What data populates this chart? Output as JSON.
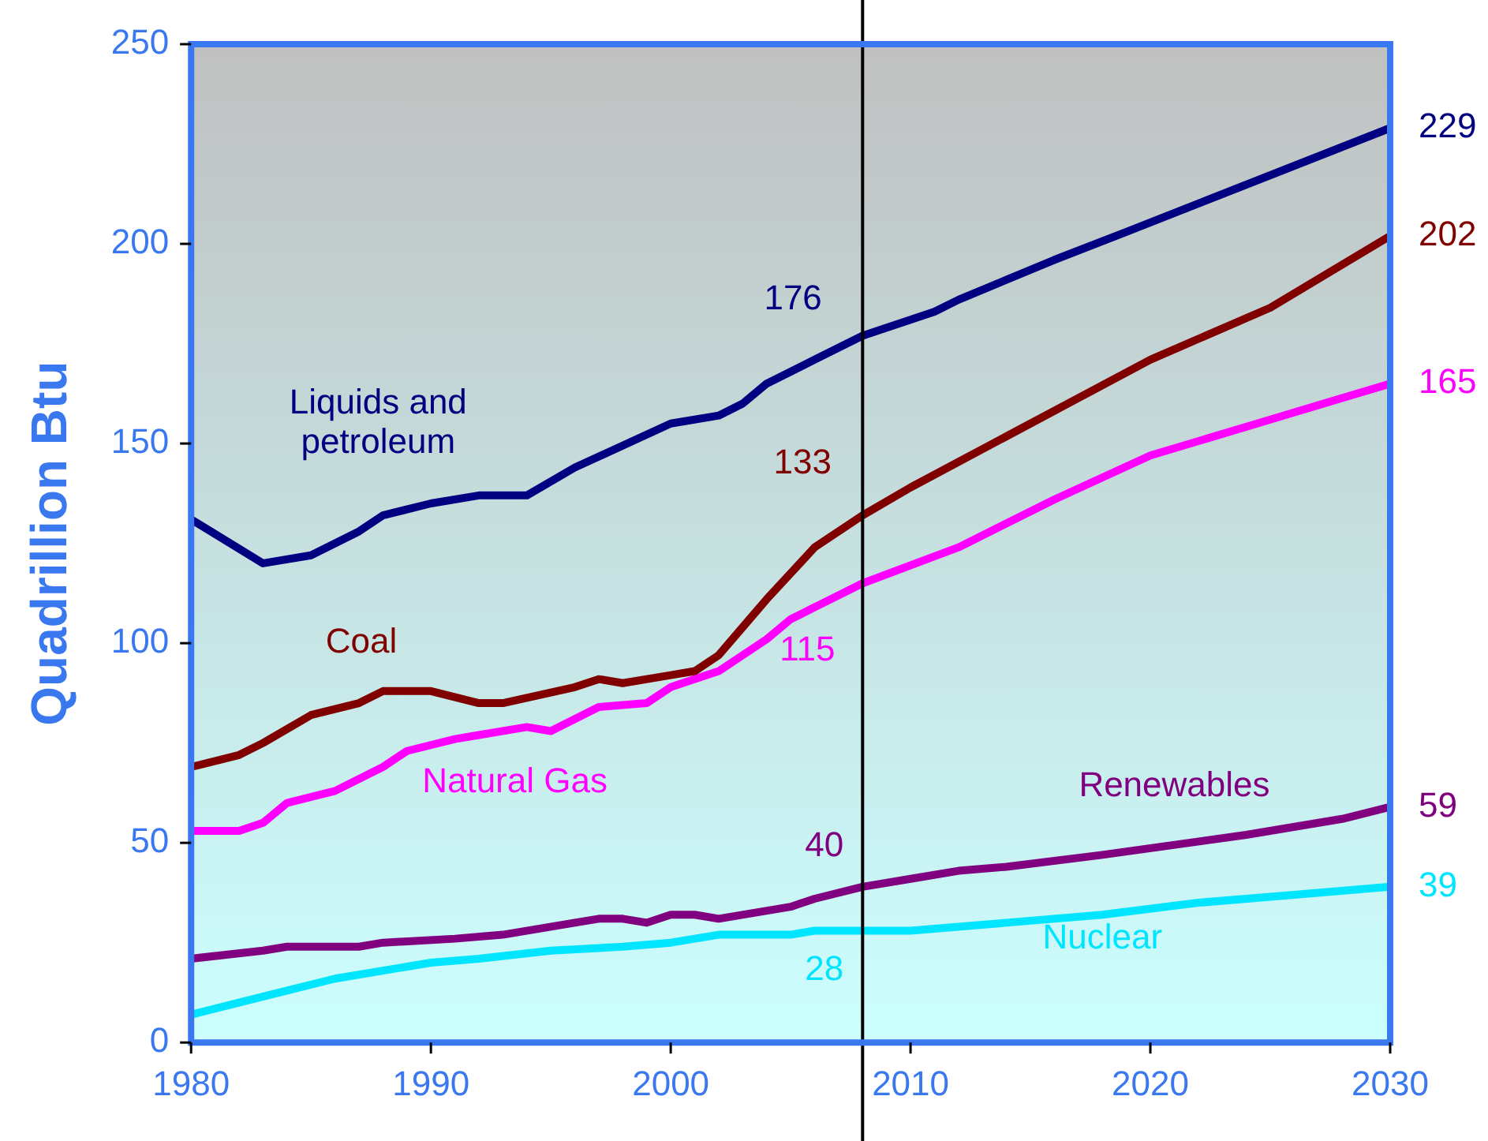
{
  "chart_data": {
    "type": "line",
    "ylabel": "Quadrillion Btu",
    "xlim": [
      1980,
      2030
    ],
    "xticks": [
      1980,
      1990,
      2000,
      2010,
      2020,
      2030
    ],
    "ylim": [
      0,
      250
    ],
    "yticks": [
      0,
      50,
      100,
      150,
      200,
      250
    ],
    "legend": false,
    "marker": "none",
    "line_style": "solid",
    "series": [
      {
        "name": "Liquids and petroleum",
        "color": "#000080",
        "x": [
          1980,
          1983,
          1985,
          1987,
          1988,
          1990,
          1992,
          1994,
          1996,
          2000,
          2002,
          2003,
          2004,
          2006,
          2008,
          2011,
          2012,
          2016,
          2019,
          2030
        ],
        "values": [
          131,
          120,
          122,
          128,
          132,
          135,
          137,
          137,
          144,
          155,
          157,
          160,
          165,
          171,
          177,
          183,
          186,
          196,
          203,
          229
        ],
        "value_labels": [
          null,
          null,
          null,
          null,
          null,
          null,
          null,
          null,
          null,
          null,
          null,
          null,
          null,
          null,
          null,
          null,
          null,
          null,
          null,
          "229"
        ]
      },
      {
        "name": "Coal",
        "color": "#800000",
        "x": [
          1980,
          1982,
          1983,
          1985,
          1987,
          1988,
          1990,
          1992,
          1993,
          1996,
          1997,
          1998,
          2000,
          2001,
          2002,
          2003,
          2004,
          2006,
          2008,
          2010,
          2015,
          2020,
          2025,
          2030
        ],
        "values": [
          69,
          72,
          75,
          82,
          85,
          88,
          88,
          85,
          85,
          89,
          91,
          90,
          92,
          93,
          97,
          104,
          111,
          124,
          132,
          139,
          155,
          171,
          184,
          202
        ],
        "value_labels": [
          null,
          null,
          null,
          null,
          null,
          null,
          null,
          null,
          null,
          null,
          null,
          null,
          null,
          null,
          null,
          null,
          null,
          null,
          null,
          null,
          null,
          null,
          null,
          "202"
        ]
      },
      {
        "name": "Natural Gas",
        "color": "#ff00ff",
        "x": [
          1980,
          1982,
          1983,
          1984,
          1986,
          1988,
          1989,
          1991,
          1992,
          1994,
          1995,
          1997,
          1999,
          2000,
          2002,
          2004,
          2005,
          2006,
          2008,
          2012,
          2016,
          2020,
          2025,
          2030
        ],
        "values": [
          53,
          53,
          55,
          60,
          63,
          69,
          73,
          76,
          77,
          79,
          78,
          84,
          85,
          89,
          93,
          101,
          106,
          109,
          115,
          124,
          136,
          147,
          156,
          165
        ],
        "value_labels": [
          null,
          null,
          null,
          null,
          null,
          null,
          null,
          null,
          null,
          null,
          null,
          null,
          null,
          null,
          null,
          null,
          null,
          null,
          null,
          null,
          null,
          null,
          null,
          "165"
        ]
      },
      {
        "name": "Renewables",
        "color": "#800080",
        "x": [
          1980,
          1983,
          1984,
          1987,
          1988,
          1991,
          1993,
          1996,
          1997,
          1998,
          1999,
          2000,
          2001,
          2002,
          2005,
          2006,
          2008,
          2010,
          2012,
          2014,
          2018,
          2024,
          2028,
          2030
        ],
        "values": [
          21,
          23,
          24,
          24,
          25,
          26,
          27,
          30,
          31,
          31,
          30,
          32,
          32,
          31,
          34,
          36,
          39,
          41,
          43,
          44,
          47,
          52,
          56,
          59
        ],
        "value_labels": [
          null,
          null,
          null,
          null,
          null,
          null,
          null,
          null,
          null,
          null,
          null,
          null,
          null,
          null,
          null,
          null,
          null,
          null,
          null,
          null,
          null,
          null,
          null,
          "59"
        ]
      },
      {
        "name": "Nuclear",
        "color": "#00e5ff",
        "x": [
          1980,
          1984,
          1986,
          1990,
          1992,
          1995,
          1998,
          2000,
          2002,
          2005,
          2006,
          2010,
          2014,
          2018,
          2022,
          2026,
          2030
        ],
        "values": [
          7,
          13,
          16,
          20,
          21,
          23,
          24,
          25,
          27,
          27,
          28,
          28,
          30,
          32,
          35,
          37,
          39
        ],
        "value_labels": [
          null,
          null,
          null,
          null,
          null,
          null,
          null,
          null,
          null,
          null,
          null,
          null,
          null,
          null,
          null,
          null,
          "39"
        ]
      }
    ],
    "ref_lines": [
      {
        "axis": "x",
        "value": 2008,
        "color": "#000000"
      }
    ],
    "annotations": [
      "176",
      "133",
      "115",
      "40",
      "28"
    ]
  }
}
